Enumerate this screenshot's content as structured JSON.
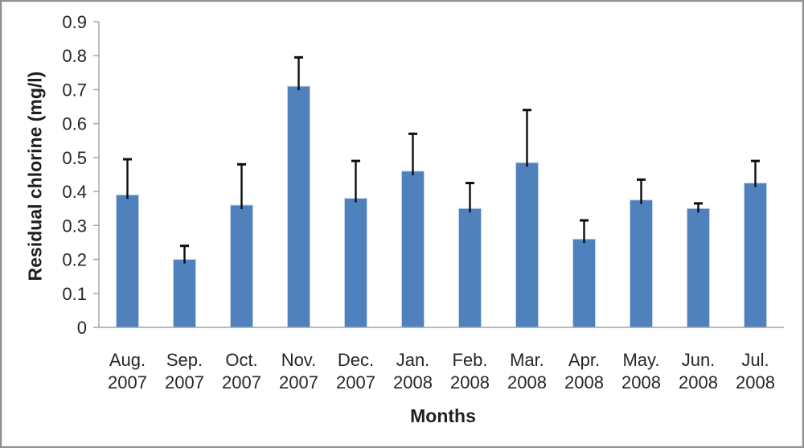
{
  "chart_data": {
    "type": "bar",
    "title": "",
    "xlabel": "Months",
    "ylabel": "Residual chlorine (mg/l)",
    "ylim": [
      0,
      0.9
    ],
    "ytick_step": 0.1,
    "ytick_labels": [
      "0",
      "0.1",
      "0.2",
      "0.3",
      "0.4",
      "0.5",
      "0.6",
      "0.7",
      "0.8",
      "0.9"
    ],
    "categories": [
      "Aug. 2007",
      "Sep. 2007",
      "Oct. 2007",
      "Nov. 2007",
      "Dec. 2007",
      "Jan. 2008",
      "Feb. 2008",
      "Mar. 2008",
      "Apr. 2008",
      "May. 2008",
      "Jun. 2008",
      "Jul. 2008"
    ],
    "values": [
      0.39,
      0.2,
      0.36,
      0.71,
      0.38,
      0.46,
      0.35,
      0.485,
      0.26,
      0.375,
      0.35,
      0.425
    ],
    "error_bar_tops": [
      0.495,
      0.24,
      0.48,
      0.795,
      0.49,
      0.57,
      0.425,
      0.64,
      0.315,
      0.435,
      0.365,
      0.49
    ],
    "grid": false,
    "legend": null,
    "colors": {
      "bar_fill": "#4f81bd",
      "bar_edge": "#c3d4e8",
      "error_bar": "#0d0d0d",
      "axis": "#a3a3a3",
      "text": "#262626"
    }
  }
}
